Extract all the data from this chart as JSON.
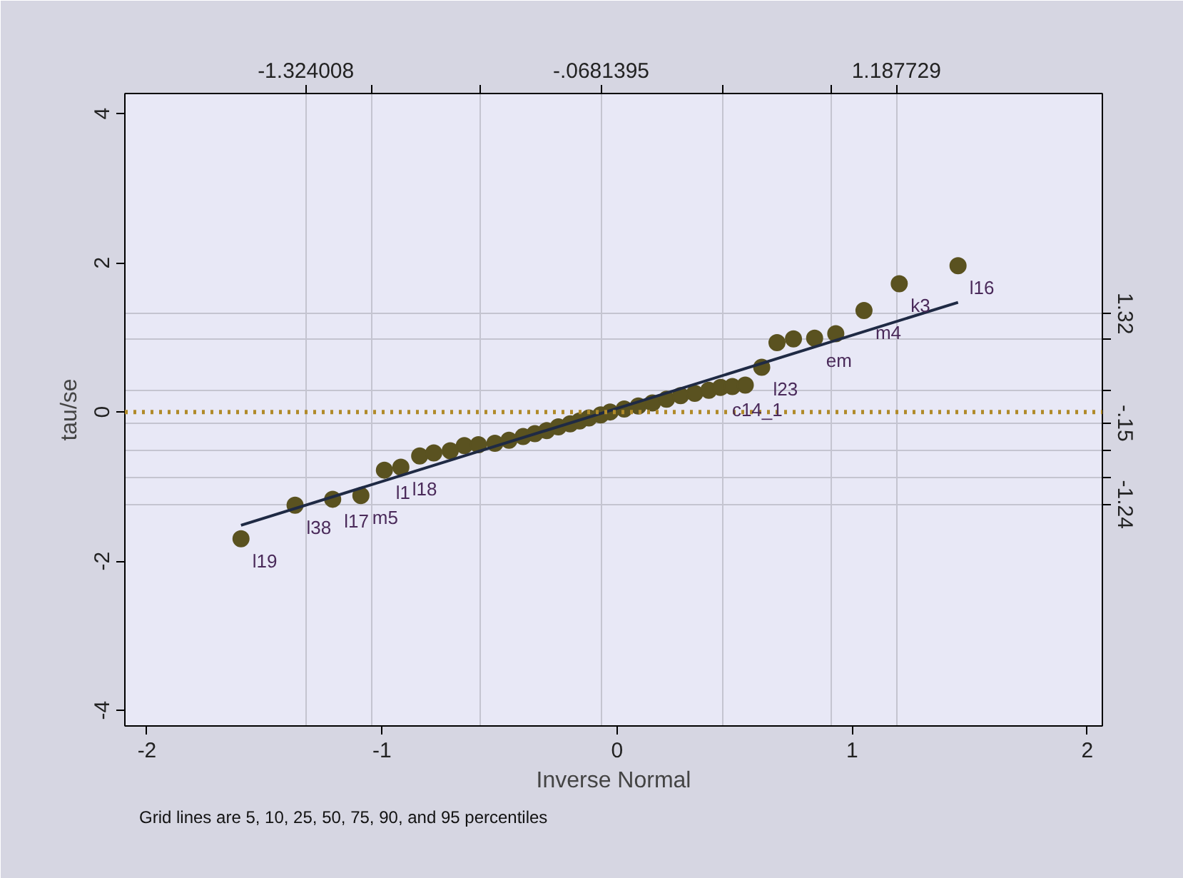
{
  "chart_data": {
    "type": "scatter",
    "xlabel": "Inverse Normal",
    "ylabel": "tau/se",
    "xlim": [
      -2.094,
      2.064
    ],
    "xticks": [
      -2,
      -1,
      0,
      1,
      2
    ],
    "ylim": [
      -4.21,
      4.27
    ],
    "yticks": [
      -4,
      -2,
      0,
      2,
      4
    ],
    "x2lim": [
      -2.094,
      2.064
    ],
    "x2ticks": [
      {
        "value": -1.324008,
        "label": "-1.324008"
      },
      {
        "value": -1.046,
        "label": null
      },
      {
        "value": -0.583,
        "label": null
      },
      {
        "value": -0.0681395,
        "label": "-.0681395"
      },
      {
        "value": 0.447,
        "label": null
      },
      {
        "value": 0.91,
        "label": null
      },
      {
        "value": 1.187729,
        "label": "1.187729"
      }
    ],
    "y2lim": [
      -4.21,
      4.27
    ],
    "y2ticks": [
      {
        "value": 1.32,
        "label": "1.32"
      },
      {
        "value": 0.98,
        "label": null
      },
      {
        "value": 0.29,
        "label": null
      },
      {
        "value": -0.15,
        "label": "-.15"
      },
      {
        "value": -0.52,
        "label": null
      },
      {
        "value": -0.88,
        "label": null
      },
      {
        "value": -1.24,
        "label": "-1.24"
      }
    ],
    "grid": true,
    "series": [
      {
        "color": "#5a5220",
        "marker": "circle",
        "value_labels": [
          "l19",
          "l38",
          "l17",
          "m5",
          "l1",
          "l18",
          null,
          null,
          null,
          null,
          null,
          null,
          null,
          null,
          null,
          null,
          null,
          null,
          null,
          null,
          null,
          null,
          null,
          null,
          null,
          null,
          null,
          null,
          null,
          "c14_1",
          null,
          null,
          "l23",
          null,
          null,
          "em",
          null,
          "m4",
          "k3",
          "l16"
        ],
        "x": [
          -1.6,
          -1.37,
          -1.21,
          -1.09,
          -0.99,
          -0.92,
          -0.84,
          -0.78,
          -0.71,
          -0.65,
          -0.59,
          -0.52,
          -0.46,
          -0.4,
          -0.35,
          -0.3,
          -0.25,
          -0.2,
          -0.16,
          -0.12,
          -0.07,
          -0.03,
          0.03,
          0.09,
          0.15,
          0.21,
          0.27,
          0.33,
          0.39,
          0.44,
          0.49,
          0.545,
          0.615,
          0.68,
          0.75,
          0.84,
          0.93,
          1.05,
          1.2,
          1.45
        ],
        "values": [
          -1.7,
          -1.25,
          -1.17,
          -1.12,
          -0.78,
          -0.74,
          -0.59,
          -0.55,
          -0.52,
          -0.45,
          -0.44,
          -0.42,
          -0.38,
          -0.33,
          -0.29,
          -0.25,
          -0.2,
          -0.16,
          -0.12,
          -0.08,
          -0.04,
          0.0,
          0.04,
          0.08,
          0.12,
          0.17,
          0.22,
          0.25,
          0.29,
          0.33,
          0.34,
          0.36,
          0.6,
          0.93,
          0.98,
          0.99,
          1.05,
          1.36,
          1.72,
          1.96
        ]
      },
      {
        "type": "line",
        "color": "#1f2a44",
        "x": [
          -1.6,
          1.45
        ],
        "values": [
          -1.52,
          1.47
        ]
      }
    ],
    "ref_lines": [
      {
        "axis": "y",
        "value": 0,
        "color": "#b08a2a",
        "line_style": "dotted"
      }
    ],
    "annotations": [
      "Grid lines are 5, 10, 25, 50, 75, 90, and 95 percentiles"
    ]
  }
}
